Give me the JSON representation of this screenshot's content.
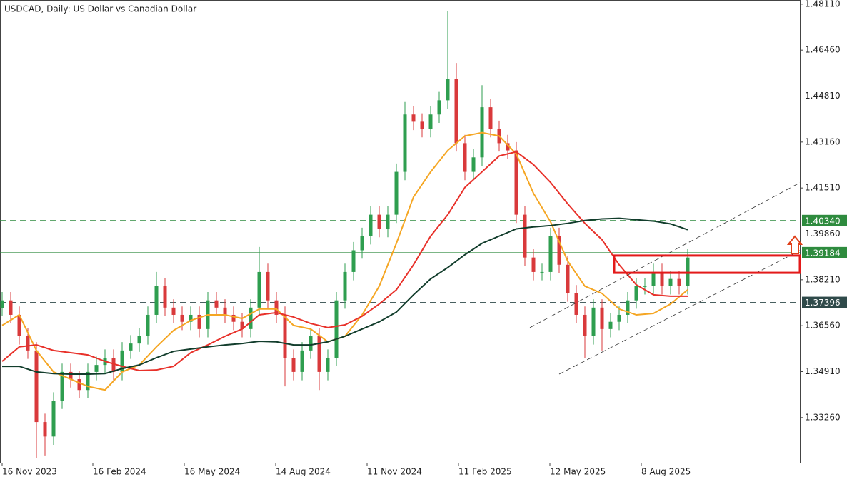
{
  "chart_data": {
    "type": "candlestick",
    "title": "USDCAD, Daily:  US Dollar vs Canadian Dollar",
    "up_color": "#2e9e4f",
    "down_color": "#d9393b",
    "x": [
      0,
      6,
      12,
      18,
      24,
      30,
      36,
      42,
      48,
      54,
      60,
      66,
      72,
      78,
      84,
      90,
      96,
      102,
      108,
      114,
      120,
      126,
      132,
      138,
      144,
      150,
      156,
      162,
      168,
      174,
      180,
      186,
      192,
      198,
      204,
      210,
      216,
      222,
      228,
      234,
      240,
      246,
      252,
      258,
      264,
      270,
      276,
      282,
      288,
      294,
      300,
      306,
      312,
      318,
      324,
      330,
      336,
      342,
      348,
      354,
      360,
      366,
      372,
      378,
      384,
      390,
      396,
      402,
      408,
      414,
      420,
      426,
      432,
      438,
      444,
      450,
      456,
      462,
      468,
      474,
      480
    ],
    "open": [
      1.372,
      1.3747,
      1.3695,
      1.3618,
      1.3567,
      1.331,
      1.3258,
      1.3387,
      1.349,
      1.3464,
      1.3425,
      1.349,
      1.3515,
      1.3541,
      1.349,
      1.3567,
      1.3592,
      1.3618,
      1.3695,
      1.3798,
      1.3721,
      1.3695,
      1.367,
      1.3695,
      1.3644,
      1.3747,
      1.3721,
      1.3695,
      1.367,
      1.3644,
      1.3721,
      1.3849,
      1.3747,
      1.3695,
      1.3541,
      1.349,
      1.3567,
      1.3618,
      1.349,
      1.3541,
      1.3747,
      1.3849,
      1.3927,
      1.3978,
      1.4055,
      1.4004,
      1.4055,
      1.4209,
      1.4415,
      1.4389,
      1.4363,
      1.4415,
      1.4466,
      1.4543,
      1.4312,
      1.4209,
      1.4261,
      1.4441,
      1.4363,
      1.4312,
      1.4286,
      1.4055,
      1.3901,
      1.3849,
      1.3849,
      1.3978,
      1.3875,
      1.3772,
      1.3695,
      1.3618,
      1.3721,
      1.3644,
      1.367,
      1.3695,
      1.3747,
      1.3798,
      1.3798,
      1.3849,
      1.3798,
      1.3824,
      1.3798
    ],
    "high": [
      1.3777,
      1.3777,
      1.3725,
      1.3648,
      1.3597,
      1.334,
      1.3417,
      1.352,
      1.352,
      1.3494,
      1.352,
      1.3545,
      1.3571,
      1.3571,
      1.3597,
      1.3622,
      1.3648,
      1.3725,
      1.3849,
      1.3828,
      1.3751,
      1.3725,
      1.3725,
      1.3725,
      1.3777,
      1.3777,
      1.3751,
      1.3725,
      1.37,
      1.3751,
      1.3939,
      1.3879,
      1.3777,
      1.3725,
      1.3571,
      1.3597,
      1.3648,
      1.3648,
      1.3571,
      1.3777,
      1.3879,
      1.3957,
      1.4008,
      1.4085,
      1.4085,
      1.4085,
      1.4239,
      1.446,
      1.4445,
      1.4419,
      1.4445,
      1.4496,
      1.4787,
      1.46,
      1.4342,
      1.4291,
      1.452,
      1.4471,
      1.4393,
      1.4342,
      1.4316,
      1.4085,
      1.3931,
      1.3879,
      1.4008,
      1.4008,
      1.3905,
      1.3802,
      1.3725,
      1.3751,
      1.3751,
      1.37,
      1.3725,
      1.3777,
      1.3828,
      1.3828,
      1.3879,
      1.3879,
      1.3854,
      1.3854,
      1.3931
    ],
    "low": [
      1.369,
      1.3665,
      1.3588,
      1.3537,
      1.3181,
      1.319,
      1.3228,
      1.3357,
      1.3434,
      1.3395,
      1.3395,
      1.346,
      1.3485,
      1.346,
      1.346,
      1.3537,
      1.3562,
      1.3588,
      1.3665,
      1.3691,
      1.3665,
      1.364,
      1.364,
      1.3614,
      1.3614,
      1.3691,
      1.3665,
      1.364,
      1.3614,
      1.3614,
      1.3691,
      1.3717,
      1.3665,
      1.3438,
      1.346,
      1.346,
      1.3537,
      1.3425,
      1.346,
      1.3511,
      1.3717,
      1.3819,
      1.3897,
      1.3948,
      1.3974,
      1.3974,
      1.4025,
      1.4179,
      1.4359,
      1.4333,
      1.4333,
      1.4385,
      1.4436,
      1.4282,
      1.4179,
      1.4179,
      1.4231,
      1.4333,
      1.4282,
      1.4256,
      1.4025,
      1.3871,
      1.3819,
      1.3819,
      1.3819,
      1.3845,
      1.3742,
      1.3665,
      1.3541,
      1.3588,
      1.3567,
      1.3614,
      1.364,
      1.3665,
      1.3717,
      1.3768,
      1.3768,
      1.3768,
      1.3768,
      1.3768,
      1.3768
    ],
    "close": [
      1.3747,
      1.3695,
      1.3618,
      1.3567,
      1.331,
      1.3258,
      1.3387,
      1.349,
      1.3464,
      1.3425,
      1.349,
      1.3515,
      1.3541,
      1.349,
      1.3567,
      1.3592,
      1.3618,
      1.3695,
      1.3798,
      1.3721,
      1.3695,
      1.367,
      1.3695,
      1.3644,
      1.3747,
      1.3721,
      1.3695,
      1.367,
      1.3644,
      1.3721,
      1.3849,
      1.3747,
      1.3695,
      1.3541,
      1.349,
      1.3567,
      1.3618,
      1.349,
      1.3541,
      1.3747,
      1.3849,
      1.3927,
      1.3978,
      1.4055,
      1.4004,
      1.4055,
      1.4209,
      1.4415,
      1.4389,
      1.4363,
      1.4415,
      1.4466,
      1.4543,
      1.4312,
      1.4209,
      1.4261,
      1.4441,
      1.4363,
      1.4312,
      1.4286,
      1.4055,
      1.3901,
      1.3849,
      1.3849,
      1.3978,
      1.3875,
      1.3772,
      1.3695,
      1.3618,
      1.3721,
      1.3644,
      1.367,
      1.3695,
      1.3747,
      1.3798,
      1.3798,
      1.3849,
      1.3798,
      1.3824,
      1.3798,
      1.3901
    ],
    "moving_averages": [
      {
        "color": "#f5a623",
        "x": [
          0,
          12,
          24,
          36,
          48,
          60,
          72,
          84,
          96,
          108,
          120,
          132,
          144,
          156,
          168,
          180,
          192,
          204,
          216,
          228,
          240,
          252,
          264,
          276,
          288,
          300,
          312,
          324,
          336,
          348,
          360,
          372,
          384,
          396,
          408,
          420,
          432,
          444,
          456,
          468,
          480
        ],
        "values": [
          1.3657,
          1.3695,
          1.3567,
          1.349,
          1.3464,
          1.3438,
          1.3425,
          1.349,
          1.3515,
          1.358,
          1.3639,
          1.3675,
          1.3695,
          1.3695,
          1.3682,
          1.3716,
          1.3716,
          1.3657,
          1.3644,
          1.3598,
          1.3618,
          1.3695,
          1.3798,
          1.3952,
          1.4119,
          1.4209,
          1.4286,
          1.4338,
          1.435,
          1.4338,
          1.4273,
          1.4132,
          1.4029,
          1.3888,
          1.3798,
          1.3772,
          1.3716,
          1.3695,
          1.37,
          1.3734,
          1.3785
        ]
      },
      {
        "color": "#e8312a",
        "x": [
          0,
          12,
          24,
          36,
          48,
          60,
          72,
          84,
          96,
          108,
          120,
          132,
          144,
          156,
          168,
          180,
          192,
          204,
          216,
          228,
          240,
          252,
          264,
          276,
          288,
          300,
          312,
          324,
          336,
          348,
          360,
          372,
          384,
          396,
          408,
          420,
          432,
          444,
          456,
          468,
          480
        ],
        "values": [
          1.3528,
          1.358,
          1.3587,
          1.3567,
          1.3559,
          1.3551,
          1.3528,
          1.351,
          1.3495,
          1.3497,
          1.351,
          1.3559,
          1.3587,
          1.3618,
          1.3644,
          1.3695,
          1.3703,
          1.3687,
          1.3664,
          1.3649,
          1.3659,
          1.369,
          1.3734,
          1.3785,
          1.3875,
          1.3978,
          1.4055,
          1.4153,
          1.4209,
          1.4266,
          1.4281,
          1.4235,
          1.4171,
          1.4094,
          1.4024,
          1.3965,
          1.3875,
          1.3803,
          1.3767,
          1.3762,
          1.3762
        ]
      },
      {
        "color": "#123d2c",
        "x": [
          0,
          12,
          24,
          36,
          48,
          60,
          72,
          84,
          96,
          108,
          120,
          132,
          144,
          156,
          168,
          180,
          192,
          204,
          216,
          228,
          240,
          252,
          264,
          276,
          288,
          300,
          312,
          324,
          336,
          348,
          360,
          372,
          384,
          396,
          408,
          420,
          432,
          444,
          456,
          468,
          480
        ],
        "values": [
          1.351,
          1.351,
          1.349,
          1.3484,
          1.3482,
          1.3482,
          1.3484,
          1.3502,
          1.3515,
          1.3541,
          1.3564,
          1.3572,
          1.358,
          1.3587,
          1.3592,
          1.36,
          1.3598,
          1.3587,
          1.3587,
          1.3598,
          1.3618,
          1.3644,
          1.367,
          1.3705,
          1.3767,
          1.3824,
          1.3865,
          1.3911,
          1.3952,
          1.3978,
          1.4004,
          1.4011,
          1.4016,
          1.4024,
          1.4034,
          1.404,
          1.4042,
          1.4037,
          1.4032,
          1.4022,
          1.4001
        ]
      }
    ],
    "trendlines": [
      {
        "color": "#333333",
        "x": [
          390,
          558.5
        ],
        "y": [
          1.3482,
          1.3926
        ]
      },
      {
        "color": "#333333",
        "x": [
          369.5,
          558.5
        ],
        "y": [
          1.3649,
          1.417
        ]
      }
    ],
    "rectangle": {
      "color": "#e31a1a",
      "x": [
        428.5,
        558.5
      ],
      "y": [
        1.3908,
        1.3846
      ]
    },
    "levels": [
      {
        "value": 1.4034,
        "label": "1.40340",
        "color": "#2e8b3e",
        "dashed": true
      },
      {
        "value": 1.39184,
        "label": "1.39184",
        "color": "#2e8b3e",
        "dashed": false
      },
      {
        "value": 1.37396,
        "label": "1.37396",
        "color": "#2f4a4a",
        "dashed": true
      }
    ],
    "xlim": [
      -1.5,
      558.5
    ],
    "ylim": [
      1.3164,
      1.4826
    ],
    "xticks": [
      {
        "value": 0,
        "label": "16 Nov 2023"
      },
      {
        "value": 63.5,
        "label": "16 Feb 2024"
      },
      {
        "value": 127.5,
        "label": "16 May 2024"
      },
      {
        "value": 191.5,
        "label": "14 Aug 2024"
      },
      {
        "value": 255.5,
        "label": "11 Nov 2024"
      },
      {
        "value": 319.5,
        "label": "11 Feb 2025"
      },
      {
        "value": 383.5,
        "label": "12 May 2025"
      },
      {
        "value": 447.5,
        "label": "8 Aug 2025"
      }
    ],
    "yticks": [
      {
        "value": 1.4811,
        "label": "1.48110"
      },
      {
        "value": 1.4646,
        "label": "1.46460"
      },
      {
        "value": 1.4481,
        "label": "1.44810"
      },
      {
        "value": 1.4316,
        "label": "1.43160"
      },
      {
        "value": 1.4151,
        "label": "1.41510"
      },
      {
        "value": 1.3986,
        "label": "1.39860"
      },
      {
        "value": 1.3821,
        "label": "1.38210"
      },
      {
        "value": 1.3656,
        "label": "1.36560"
      },
      {
        "value": 1.3491,
        "label": "1.34910"
      },
      {
        "value": 1.3326,
        "label": "1.33260"
      }
    ]
  }
}
